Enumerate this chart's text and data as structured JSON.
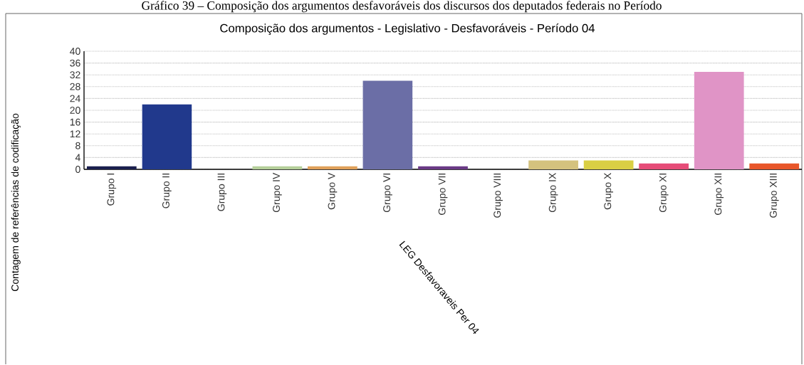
{
  "chart_data": {
    "type": "bar",
    "title": "Composição dos argumentos - Legislativo - Desfavoráveis - Período 04",
    "annotations": [
      "Gráfico 39 – Composição dos argumentos desfavoráveis dos discursos dos deputados federais no Período"
    ],
    "xlabel": "LEG Desfavoraveis Per 04",
    "ylabel": "Contagem de referências de codificação",
    "categories": [
      "Grupo I",
      "Grupo II",
      "Grupo III",
      "Grupo IV",
      "Grupo V",
      "Grupo VI",
      "Grupo VII",
      "Grupo VIII",
      "Grupo IX",
      "Grupo X",
      "Grupo XI",
      "Grupo XII",
      "Grupo XIII"
    ],
    "values": [
      1,
      22,
      0,
      1,
      1,
      30,
      1,
      0,
      3,
      3,
      2,
      33,
      2
    ],
    "colors": [
      "#1a1f4e",
      "#21398c",
      "#3b3b3b",
      "#b5cf9a",
      "#e0a15a",
      "#6b6ea6",
      "#6a3a86",
      "#3b3b3b",
      "#d4c27e",
      "#d9cf44",
      "#e64c78",
      "#e094c6",
      "#e8562a"
    ],
    "ylim": [
      0,
      40
    ],
    "yticks": [
      0,
      4,
      8,
      12,
      16,
      20,
      24,
      28,
      32,
      36,
      40
    ],
    "grid": "y"
  }
}
